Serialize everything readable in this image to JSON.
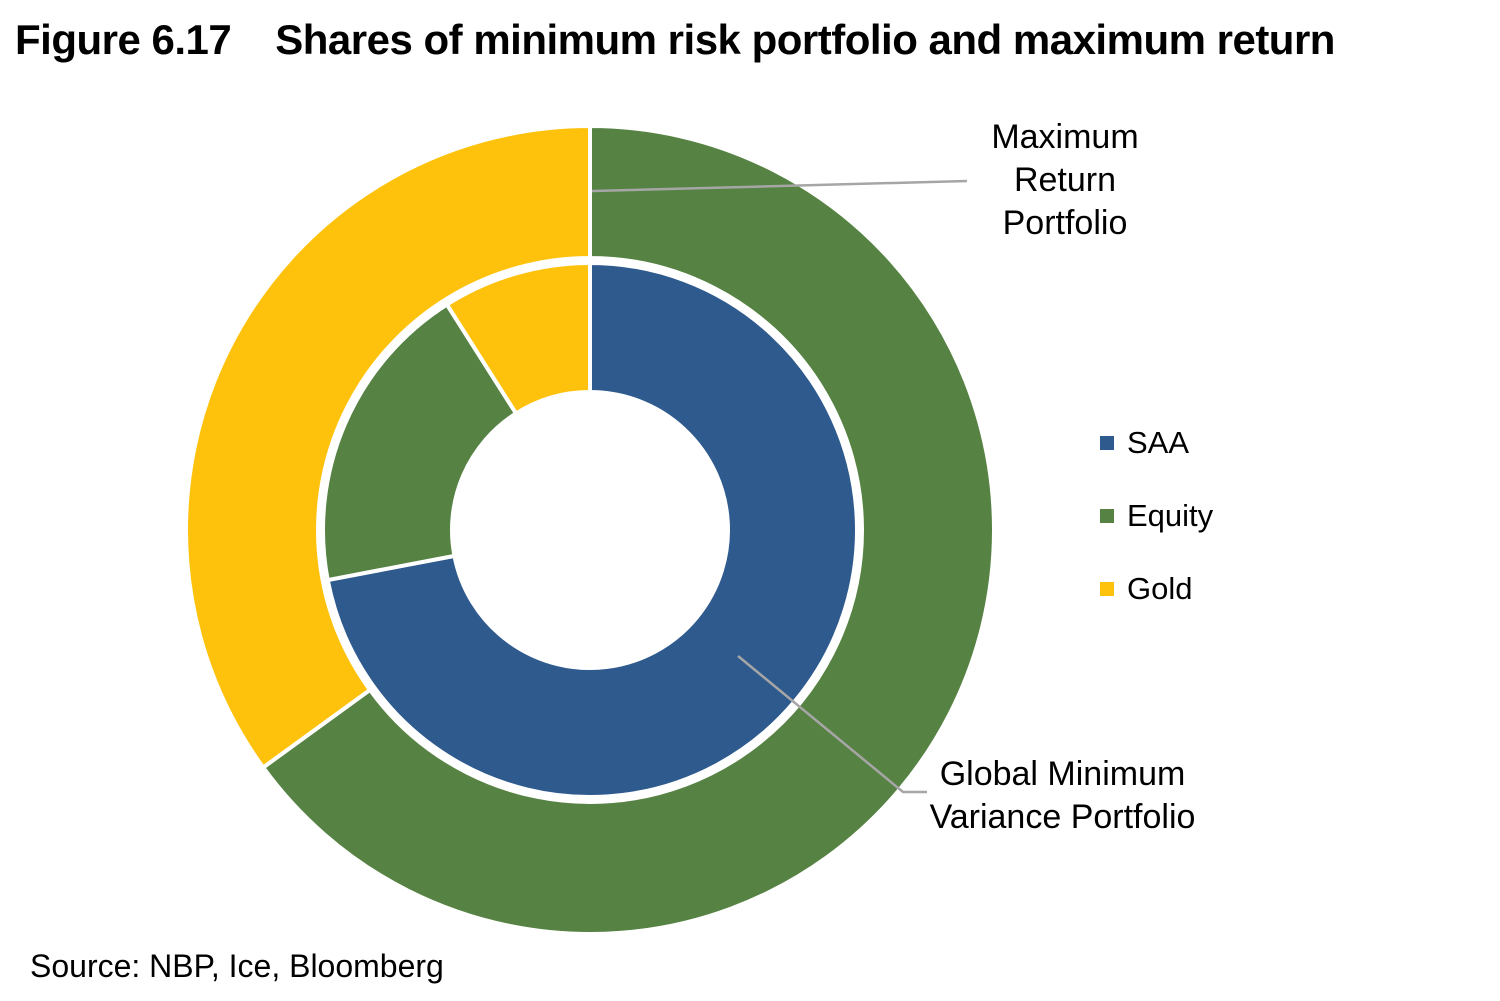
{
  "header": {
    "figure_label": "Figure 6.17",
    "title": "Shares of minimum risk portfolio and maximum return"
  },
  "annotations": {
    "maximum_return": {
      "text": "Maximum\nReturn\nPortfolio"
    },
    "global_minimum_variance": {
      "text": "Global Minimum\nVariance Portfolio"
    }
  },
  "legend": {
    "items": [
      {
        "label": "SAA",
        "color_key": "SAA"
      },
      {
        "label": "Equity",
        "color_key": "Equity"
      },
      {
        "label": "Gold",
        "color_key": "Gold"
      }
    ]
  },
  "source": {
    "text": "Source: NBP, Ice, Bloomberg"
  },
  "chart_data": {
    "type": "pie",
    "subtype": "nested-donut",
    "title": "Shares of minimum risk portfolio and maximum return",
    "units": "share of portfolio, % (estimated from segment angles; no data labels shown)",
    "start": "12 o'clock, clockwise",
    "colors": {
      "SAA": "#2E5A8E",
      "Equity": "#568243",
      "Gold": "#FEC20D"
    },
    "legend_position": "right",
    "rings": [
      {
        "name": "Maximum Return Portfolio",
        "position": "outer",
        "segments": [
          {
            "label": "Equity",
            "value": 65
          },
          {
            "label": "Gold",
            "value": 35
          }
        ]
      },
      {
        "name": "Global Minimum Variance Portfolio",
        "position": "inner",
        "segments": [
          {
            "label": "SAA",
            "value": 72
          },
          {
            "label": "Equity",
            "value": 19
          },
          {
            "label": "Gold",
            "value": 9
          }
        ]
      }
    ]
  }
}
